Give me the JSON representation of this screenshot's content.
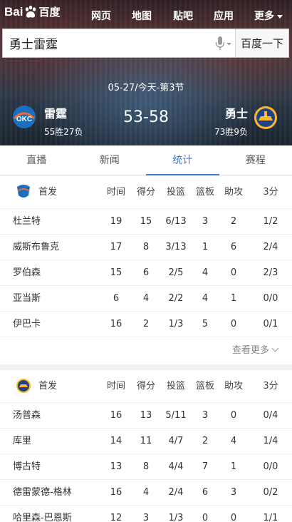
{
  "brand": {
    "text_left": "Bai",
    "text_right": "百度"
  },
  "nav": [
    "网页",
    "地图",
    "贴吧",
    "应用",
    "更多"
  ],
  "search": {
    "query": "勇士雷霆",
    "button": "百度一下"
  },
  "game": {
    "date": "05-27/今天-第3节",
    "score": "53-58",
    "home": {
      "name": "雷霆",
      "record": "55胜27负",
      "logo": "thunder-logo"
    },
    "away": {
      "name": "勇士",
      "record": "73胜9负",
      "logo": "warriors-logo"
    }
  },
  "tabs": [
    "直播",
    "新闻",
    "统计",
    "赛程"
  ],
  "active_tab": "统计",
  "columns": [
    "时间",
    "得分",
    "投篮",
    "篮板",
    "助攻",
    "3分"
  ],
  "thunder": {
    "label": "首发",
    "players": [
      [
        "杜兰特",
        "19",
        "15",
        "6/13",
        "3",
        "2",
        "1/2"
      ],
      [
        "威斯布鲁克",
        "17",
        "8",
        "3/13",
        "1",
        "6",
        "2/4"
      ],
      [
        "罗伯森",
        "15",
        "6",
        "2/5",
        "4",
        "0",
        "2/3"
      ],
      [
        "亚当斯",
        "6",
        "4",
        "2/2",
        "4",
        "1",
        "0/0"
      ],
      [
        "伊巴卡",
        "16",
        "2",
        "1/3",
        "5",
        "0",
        "0/1"
      ]
    ],
    "more": "查看更多"
  },
  "warriors": {
    "label": "首发",
    "players": [
      [
        "汤普森",
        "16",
        "13",
        "5/11",
        "3",
        "0",
        "0/4"
      ],
      [
        "库里",
        "14",
        "11",
        "4/7",
        "2",
        "4",
        "1/4"
      ],
      [
        "博古特",
        "13",
        "8",
        "4/4",
        "7",
        "1",
        "0/0"
      ],
      [
        "德雷蒙德-格林",
        "16",
        "4",
        "2/4",
        "6",
        "3",
        "0/2"
      ],
      [
        "哈里森-巴恩斯",
        "12",
        "3",
        "1/3",
        "0",
        "0",
        "1/1"
      ]
    ]
  },
  "colors": {
    "accent": "#3b7fd1",
    "thunder_blue": "#1b6fc0",
    "thunder_orange": "#ef6b2e",
    "warriors_blue": "#1d428a",
    "warriors_gold": "#fdb927"
  }
}
